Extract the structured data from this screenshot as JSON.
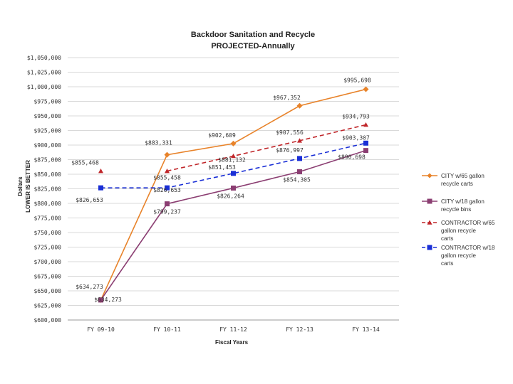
{
  "chart_data": {
    "type": "line",
    "title": "Backdoor Sanitation and Recycle",
    "subtitle": "PROJECTED-Annually",
    "ylabel_line1": "Dollars",
    "ylabel_line2": "LOWER IS BETTER",
    "xlabel": "Fiscal Years",
    "categories": [
      "FY 09-10",
      "FY 10-11",
      "FY 11-12",
      "FY 12-13",
      "FY 13-14"
    ],
    "ylim": [
      600000,
      1050000
    ],
    "ytick_step": 25000,
    "ytick_labels": [
      "$600,000",
      "$625,000",
      "$650,000",
      "$675,000",
      "$700,000",
      "$725,000",
      "$750,000",
      "$775,000",
      "$800,000",
      "$825,000",
      "$850,000",
      "$875,000",
      "$900,000",
      "$925,000",
      "$950,000",
      "$975,000",
      "$1,000,000",
      "$1,025,000",
      "$1,050,000"
    ],
    "legend_position": "right",
    "grid": "horizontal",
    "series": [
      {
        "name": "CITY w/65 gallon recycle carts",
        "color": "#e8832a",
        "marker": "diamond",
        "dash": "solid",
        "values": [
          634273,
          883331,
          902609,
          967352,
          995698
        ],
        "labels": [
          "",
          "$883,331",
          "$902,609",
          "$967,352",
          "$995,698"
        ]
      },
      {
        "name": "CITY w/18 gallon recycle bins",
        "color": "#8b3e72",
        "marker": "square",
        "dash": "solid",
        "values": [
          634273,
          799237,
          826264,
          854305,
          890698
        ],
        "labels": [
          "$634,273",
          "$799,237",
          "$826,264",
          "$854,305",
          "$890,698"
        ]
      },
      {
        "name": "CONTRACTOR w/65 gallon recycle carts",
        "color": "#c0262a",
        "marker": "triangle",
        "dash": "dash",
        "values": [
          855468,
          855458,
          881132,
          907556,
          934793
        ],
        "labels": [
          "$855,468",
          "$855,458",
          "$881,132",
          "$907,556",
          "$934,793"
        ]
      },
      {
        "name": "CONTRACTOR w/18 gallon recycle carts",
        "color": "#1a2fd6",
        "marker": "square",
        "dash": "dash",
        "values": [
          826653,
          826653,
          851453,
          876997,
          903307
        ],
        "labels": [
          "$826,653",
          "$826,653",
          "$851,453",
          "$876,997",
          "$903,307"
        ]
      }
    ],
    "extra_labels": [
      "$634,273"
    ]
  }
}
